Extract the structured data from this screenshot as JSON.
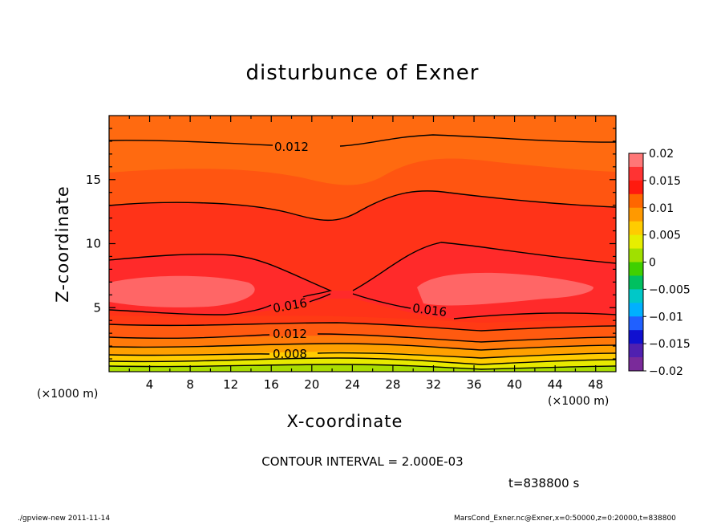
{
  "chart_data": {
    "type": "contour",
    "title": "disturbunce of Exner",
    "xlabel": "X-coordinate",
    "ylabel": "Z-coordinate",
    "x_unit_label": "(×1000 m)",
    "xlim": [
      0,
      50
    ],
    "ylim": [
      0,
      20
    ],
    "x_ticks": [
      4,
      8,
      12,
      16,
      20,
      24,
      28,
      32,
      36,
      40,
      44,
      48
    ],
    "y_ticks": [
      5,
      10,
      15
    ],
    "colorbar": {
      "ticks": [
        "0.02",
        "0.015",
        "0.01",
        "0.005",
        "0",
        "−0.005",
        "−0.01",
        "−0.015",
        "−0.02"
      ],
      "colors": [
        "#ff7777",
        "#ff3333",
        "#ff1a0f",
        "#ff6600",
        "#ff9900",
        "#ffcc00",
        "#e6ee00",
        "#a0e000",
        "#40d000",
        "#00c060",
        "#00c8c8",
        "#00b0ff",
        "#2060ff",
        "#1010d0",
        "#5020b0",
        "#7a2a9a"
      ]
    },
    "contour_labels": [
      "0.012",
      "0.016",
      "0.016",
      "0.012",
      "0.008"
    ],
    "contour_interval": "CONTOUR INTERVAL = 2.000E-03",
    "time": "t=838800 s"
  },
  "footer": {
    "left": "./gpview-new  2011-11-14",
    "right": "MarsCond_Exner.nc@Exner,x=0:50000,z=0:20000,t=838800"
  }
}
